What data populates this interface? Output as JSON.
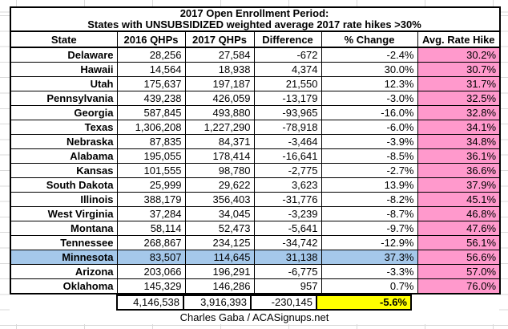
{
  "footer": "Charles Gaba / ACASignups.net",
  "colors": {
    "rate_hike_column_bg": "#FF99CC",
    "highlighted_row_bg": "#A5C8EA",
    "total_pct_change_bg": "#FFFF00",
    "table_border": "#000000",
    "sheet_gridline": "#d9d9d9"
  },
  "chart_data": {
    "type": "table",
    "title_line1": "2017 Open Enrollment Period:",
    "title_line2": "States with UNSUBSIDIZED weighted average 2017 rate hikes >30%",
    "columns": [
      "State",
      "2016 QHPs",
      "2017 QHPs",
      "Difference",
      "% Change",
      "Avg. Rate Hike"
    ],
    "rows": [
      {
        "state": "Delaware",
        "qhps_2016": "28,256",
        "qhps_2017": "27,584",
        "difference": "-672",
        "pct_change": "-2.4%",
        "avg_rate_hike": "30.2%"
      },
      {
        "state": "Hawaii",
        "qhps_2016": "14,564",
        "qhps_2017": "18,938",
        "difference": "4,374",
        "pct_change": "30.0%",
        "avg_rate_hike": "30.7%"
      },
      {
        "state": "Utah",
        "qhps_2016": "175,637",
        "qhps_2017": "197,187",
        "difference": "21,550",
        "pct_change": "12.3%",
        "avg_rate_hike": "31.7%"
      },
      {
        "state": "Pennsylvania",
        "qhps_2016": "439,238",
        "qhps_2017": "426,059",
        "difference": "-13,179",
        "pct_change": "-3.0%",
        "avg_rate_hike": "32.5%"
      },
      {
        "state": "Georgia",
        "qhps_2016": "587,845",
        "qhps_2017": "493,880",
        "difference": "-93,965",
        "pct_change": "-16.0%",
        "avg_rate_hike": "32.8%"
      },
      {
        "state": "Texas",
        "qhps_2016": "1,306,208",
        "qhps_2017": "1,227,290",
        "difference": "-78,918",
        "pct_change": "-6.0%",
        "avg_rate_hike": "34.1%"
      },
      {
        "state": "Nebraska",
        "qhps_2016": "87,835",
        "qhps_2017": "84,371",
        "difference": "-3,464",
        "pct_change": "-3.9%",
        "avg_rate_hike": "34.8%"
      },
      {
        "state": "Alabama",
        "qhps_2016": "195,055",
        "qhps_2017": "178,414",
        "difference": "-16,641",
        "pct_change": "-8.5%",
        "avg_rate_hike": "36.1%"
      },
      {
        "state": "Kansas",
        "qhps_2016": "101,555",
        "qhps_2017": "98,780",
        "difference": "-2,775",
        "pct_change": "-2.7%",
        "avg_rate_hike": "36.6%"
      },
      {
        "state": "South Dakota",
        "qhps_2016": "25,999",
        "qhps_2017": "29,622",
        "difference": "3,623",
        "pct_change": "13.9%",
        "avg_rate_hike": "37.9%"
      },
      {
        "state": "Illinois",
        "qhps_2016": "388,179",
        "qhps_2017": "356,403",
        "difference": "-31,776",
        "pct_change": "-8.2%",
        "avg_rate_hike": "45.1%"
      },
      {
        "state": "West Virginia",
        "qhps_2016": "37,284",
        "qhps_2017": "34,045",
        "difference": "-3,239",
        "pct_change": "-8.7%",
        "avg_rate_hike": "46.8%"
      },
      {
        "state": "Montana",
        "qhps_2016": "58,114",
        "qhps_2017": "52,473",
        "difference": "-5,641",
        "pct_change": "-9.7%",
        "avg_rate_hike": "47.6%"
      },
      {
        "state": "Tennessee",
        "qhps_2016": "268,867",
        "qhps_2017": "234,125",
        "difference": "-34,742",
        "pct_change": "-12.9%",
        "avg_rate_hike": "56.1%"
      },
      {
        "state": "Minnesota",
        "qhps_2016": "83,507",
        "qhps_2017": "114,645",
        "difference": "31,138",
        "pct_change": "37.3%",
        "avg_rate_hike": "56.6%",
        "highlighted": true
      },
      {
        "state": "Arizona",
        "qhps_2016": "203,066",
        "qhps_2017": "196,291",
        "difference": "-6,775",
        "pct_change": "-3.3%",
        "avg_rate_hike": "57.0%"
      },
      {
        "state": "Oklahoma",
        "qhps_2016": "145,329",
        "qhps_2017": "146,286",
        "difference": "957",
        "pct_change": "0.7%",
        "avg_rate_hike": "76.0%"
      }
    ],
    "total_row": {
      "qhps_2016": "4,146,538",
      "qhps_2017": "3,916,393",
      "difference": "-230,145",
      "pct_change": "-5.6%"
    },
    "highlighted_row": "Minnesota",
    "legend_position": "none",
    "grid": "spreadsheet-gridlines-visible"
  }
}
